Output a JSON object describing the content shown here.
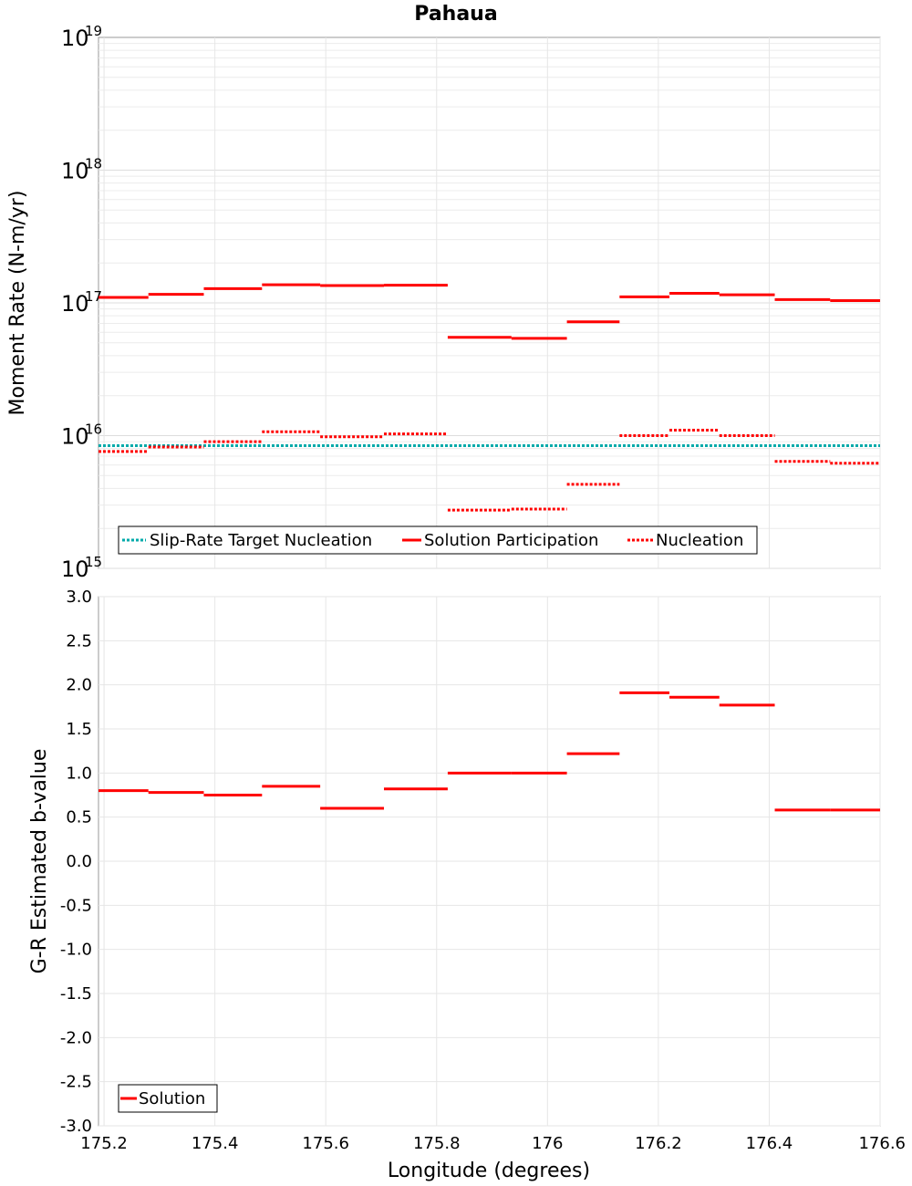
{
  "chart_data": [
    {
      "type": "line",
      "title": "Pahaua",
      "xlabel": "",
      "ylabel": "Moment Rate (N-m/yr)",
      "yscale": "log",
      "ylim": [
        1000000000000000.0,
        1e+19
      ],
      "xlim": [
        175.19,
        176.6
      ],
      "y_tick_labels": [
        {
          "base": "10",
          "exp": "15"
        },
        {
          "base": "10",
          "exp": "16"
        },
        {
          "base": "10",
          "exp": "17"
        },
        {
          "base": "10",
          "exp": "18"
        },
        {
          "base": "10",
          "exp": "19"
        }
      ],
      "grid": true,
      "legend_position": "bottom-left",
      "series": [
        {
          "name": "Slip-Rate Target Nucleation",
          "color": "#00aaaa",
          "style": "dotted",
          "segments": [
            {
              "x0": 175.19,
              "x1": 176.6,
              "y": 8400000000000000.0
            }
          ]
        },
        {
          "name": "Solution Participation",
          "color": "#ff0000",
          "style": "solid",
          "segments": [
            {
              "x0": 175.19,
              "x1": 175.28,
              "y": 1.1e+17
            },
            {
              "x0": 175.28,
              "x1": 175.38,
              "y": 1.16e+17
            },
            {
              "x0": 175.38,
              "x1": 175.485,
              "y": 1.28e+17
            },
            {
              "x0": 175.485,
              "x1": 175.59,
              "y": 1.37e+17
            },
            {
              "x0": 175.59,
              "x1": 175.705,
              "y": 1.35e+17
            },
            {
              "x0": 175.705,
              "x1": 175.82,
              "y": 1.36e+17
            },
            {
              "x0": 175.82,
              "x1": 175.935,
              "y": 5.5e+16
            },
            {
              "x0": 175.935,
              "x1": 176.035,
              "y": 5.4e+16
            },
            {
              "x0": 176.035,
              "x1": 176.13,
              "y": 7.2e+16
            },
            {
              "x0": 176.13,
              "x1": 176.22,
              "y": 1.11e+17
            },
            {
              "x0": 176.22,
              "x1": 176.31,
              "y": 1.18e+17
            },
            {
              "x0": 176.31,
              "x1": 176.41,
              "y": 1.15e+17
            },
            {
              "x0": 176.41,
              "x1": 176.51,
              "y": 1.06e+17
            },
            {
              "x0": 176.51,
              "x1": 176.6,
              "y": 1.04e+17
            }
          ]
        },
        {
          "name": "Nucleation",
          "color": "#ff0000",
          "style": "dotted",
          "segments": [
            {
              "x0": 175.19,
              "x1": 175.28,
              "y": 7600000000000000.0
            },
            {
              "x0": 175.28,
              "x1": 175.38,
              "y": 8200000000000000.0
            },
            {
              "x0": 175.38,
              "x1": 175.485,
              "y": 9000000000000000.0
            },
            {
              "x0": 175.485,
              "x1": 175.59,
              "y": 1.07e+16
            },
            {
              "x0": 175.59,
              "x1": 175.705,
              "y": 9800000000000000.0
            },
            {
              "x0": 175.705,
              "x1": 175.82,
              "y": 1.03e+16
            },
            {
              "x0": 175.82,
              "x1": 175.935,
              "y": 2750000000000000.0
            },
            {
              "x0": 175.935,
              "x1": 176.035,
              "y": 2800000000000000.0
            },
            {
              "x0": 176.035,
              "x1": 176.13,
              "y": 4300000000000000.0
            },
            {
              "x0": 176.13,
              "x1": 176.22,
              "y": 1e+16
            },
            {
              "x0": 176.22,
              "x1": 176.31,
              "y": 1.1e+16
            },
            {
              "x0": 176.31,
              "x1": 176.41,
              "y": 1e+16
            },
            {
              "x0": 176.41,
              "x1": 176.51,
              "y": 6400000000000000.0
            },
            {
              "x0": 176.51,
              "x1": 176.6,
              "y": 6200000000000000.0
            }
          ]
        }
      ]
    },
    {
      "type": "line",
      "title": "",
      "xlabel": "Longitude (degrees)",
      "ylabel": "G-R Estimated b-value",
      "yscale": "linear",
      "ylim": [
        -3.0,
        3.0
      ],
      "xlim": [
        175.19,
        176.6
      ],
      "x_ticks": [
        175.2,
        175.4,
        175.6,
        175.8,
        176,
        176.2,
        176.4,
        176.6
      ],
      "x_tick_labels": [
        "175.2",
        "175.4",
        "175.6",
        "175.8",
        "176",
        "176.2",
        "176.4",
        "176.6"
      ],
      "y_ticks": [
        -3.0,
        -2.5,
        -2.0,
        -1.5,
        -1.0,
        -0.5,
        0.0,
        0.5,
        1.0,
        1.5,
        2.0,
        2.5,
        3.0
      ],
      "y_tick_labels": [
        "-3.0",
        "-2.5",
        "-2.0",
        "-1.5",
        "-1.0",
        "-0.5",
        "0.0",
        "0.5",
        "1.0",
        "1.5",
        "2.0",
        "2.5",
        "3.0"
      ],
      "grid": true,
      "legend_position": "bottom-left",
      "series": [
        {
          "name": "Solution",
          "color": "#ff0000",
          "style": "solid",
          "segments": [
            {
              "x0": 175.19,
              "x1": 175.28,
              "y": 0.8
            },
            {
              "x0": 175.28,
              "x1": 175.38,
              "y": 0.78
            },
            {
              "x0": 175.38,
              "x1": 175.485,
              "y": 0.75
            },
            {
              "x0": 175.485,
              "x1": 175.59,
              "y": 0.85
            },
            {
              "x0": 175.59,
              "x1": 175.705,
              "y": 0.6
            },
            {
              "x0": 175.705,
              "x1": 175.82,
              "y": 0.82
            },
            {
              "x0": 175.82,
              "x1": 175.935,
              "y": 1.0
            },
            {
              "x0": 175.935,
              "x1": 176.035,
              "y": 1.0
            },
            {
              "x0": 176.035,
              "x1": 176.13,
              "y": 1.22
            },
            {
              "x0": 176.13,
              "x1": 176.22,
              "y": 1.91
            },
            {
              "x0": 176.22,
              "x1": 176.31,
              "y": 1.86
            },
            {
              "x0": 176.31,
              "x1": 176.41,
              "y": 1.77
            },
            {
              "x0": 176.41,
              "x1": 176.51,
              "y": 0.58
            },
            {
              "x0": 176.51,
              "x1": 176.6,
              "y": 0.58
            }
          ]
        }
      ]
    }
  ]
}
